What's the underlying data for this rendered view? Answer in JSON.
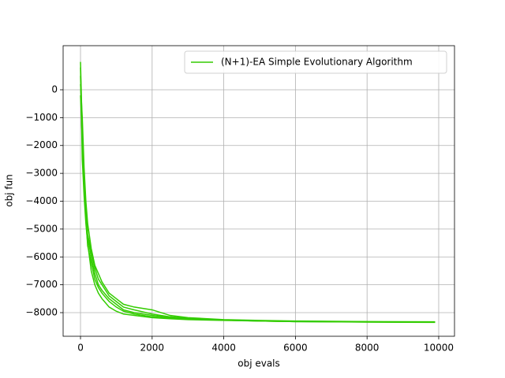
{
  "chart_data": {
    "type": "line",
    "xlabel": "obj evals",
    "ylabel": "obj fun",
    "x": [
      0,
      50,
      100,
      150,
      200,
      300,
      400,
      500,
      600,
      800,
      1000,
      1200,
      1500,
      2000,
      2500,
      3000,
      4000,
      5000,
      6000,
      8000,
      9900
    ],
    "series": [
      {
        "name": "(N+1)-EA Simple Evolutionary Algorithm",
        "color": "#33cc00",
        "values": [
          1000,
          -1500,
          -3000,
          -4200,
          -5200,
          -5800,
          -6400,
          -6800,
          -7000,
          -7400,
          -7600,
          -7800,
          -7900,
          -8050,
          -8150,
          -8200,
          -8260,
          -8290,
          -8310,
          -8330,
          -8340
        ]
      },
      {
        "color": "#33cc00",
        "values": [
          500,
          -2000,
          -3500,
          -4600,
          -5600,
          -6200,
          -6800,
          -7100,
          -7300,
          -7600,
          -7800,
          -7950,
          -8050,
          -8150,
          -8200,
          -8230,
          -8270,
          -8300,
          -8320,
          -8340,
          -8350
        ]
      },
      {
        "color": "#33cc00",
        "values": [
          200,
          -1000,
          -2800,
          -4000,
          -4800,
          -5700,
          -6300,
          -6600,
          -6900,
          -7300,
          -7500,
          -7700,
          -7800,
          -7900,
          -8100,
          -8180,
          -8250,
          -8280,
          -8300,
          -8320,
          -8330
        ]
      },
      {
        "color": "#33cc00",
        "values": [
          800,
          -2500,
          -3800,
          -4800,
          -5500,
          -6500,
          -7000,
          -7300,
          -7500,
          -7800,
          -7950,
          -8050,
          -8100,
          -8180,
          -8220,
          -8250,
          -8280,
          -8300,
          -8320,
          -8335,
          -8345
        ]
      },
      {
        "color": "#33cc00",
        "values": [
          -200,
          -1800,
          -3200,
          -4400,
          -5300,
          -6000,
          -6600,
          -7000,
          -7200,
          -7500,
          -7700,
          -7900,
          -8000,
          -8100,
          -8170,
          -8220,
          -8270,
          -8300,
          -8320,
          -8330,
          -8340
        ]
      }
    ],
    "xlim": [
      -485,
      10441
    ],
    "ylim": [
      -8848,
      1583
    ],
    "xticks": [
      0,
      2000,
      4000,
      6000,
      8000,
      10000
    ],
    "yticks": [
      {
        "value": -8000,
        "label": "−8000"
      },
      {
        "value": -7000,
        "label": "−7000"
      },
      {
        "value": -6000,
        "label": "−6000"
      },
      {
        "value": -5000,
        "label": "−5000"
      },
      {
        "value": -4000,
        "label": "−4000"
      },
      {
        "value": -3000,
        "label": "−3000"
      },
      {
        "value": -2000,
        "label": "−2000"
      },
      {
        "value": -1000,
        "label": "−1000"
      },
      0
    ],
    "grid": true,
    "legend": "upper right"
  }
}
